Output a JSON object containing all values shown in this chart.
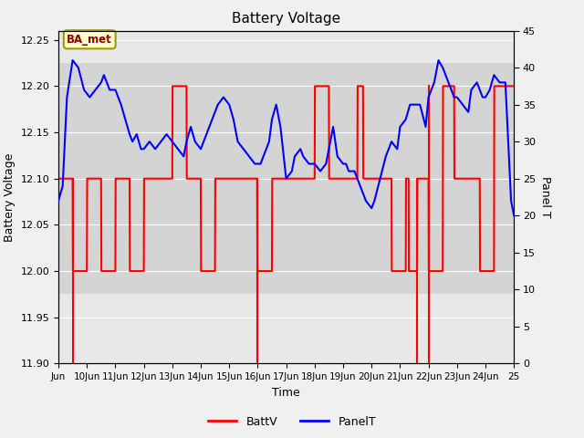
{
  "title": "Battery Voltage",
  "xlabel": "Time",
  "ylabel_left": "Battery Voltage",
  "ylabel_right": "Panel T",
  "annotation_text": "BA_met",
  "xlim": [
    9,
    25
  ],
  "ylim_left": [
    11.9,
    12.26
  ],
  "ylim_right": [
    0,
    45
  ],
  "yticks_left": [
    11.9,
    11.95,
    12.0,
    12.05,
    12.1,
    12.15,
    12.2,
    12.25
  ],
  "yticks_right": [
    0,
    5,
    10,
    15,
    20,
    25,
    30,
    35,
    40,
    45
  ],
  "xtick_positions": [
    9,
    10,
    11,
    12,
    13,
    14,
    15,
    16,
    17,
    18,
    19,
    20,
    21,
    22,
    23,
    24,
    25
  ],
  "xtick_labels": [
    "Jun",
    "10Jun",
    "11Jun",
    "12Jun",
    "13Jun",
    "14Jun",
    "15Jun",
    "16Jun",
    "17Jun",
    "18Jun",
    "19Jun",
    "20Jun",
    "21Jun",
    "22Jun",
    "23Jun",
    "24Jun",
    "25"
  ],
  "background_color": "#f0f0f0",
  "plot_bg_color": "#e8e8e8",
  "shaded_region_ymin": 11.975,
  "shaded_region_ymax": 12.225,
  "shaded_color": "#d4d4d4",
  "battv_color": "#ff0000",
  "panelt_color": "#0000ff",
  "battv_x": [
    9.0,
    9.5,
    9.51,
    10.0,
    10.01,
    10.5,
    10.51,
    11.0,
    11.01,
    11.5,
    11.51,
    12.0,
    12.01,
    12.5,
    12.51,
    13.0,
    13.01,
    13.5,
    13.51,
    14.0,
    14.01,
    14.5,
    14.51,
    15.0,
    15.01,
    15.5,
    15.51,
    15.98,
    15.99,
    16.5,
    16.51,
    17.0,
    17.01,
    17.5,
    17.51,
    18.0,
    18.01,
    18.5,
    18.51,
    19.0,
    19.01,
    19.5,
    19.51,
    19.7,
    19.71,
    20.2,
    20.21,
    20.7,
    20.71,
    21.2,
    21.21,
    21.3,
    21.31,
    21.6,
    21.61,
    22.0,
    22.01,
    22.5,
    22.51,
    22.9,
    22.91,
    23.4,
    23.41,
    23.8,
    23.81,
    24.3,
    24.31,
    24.8,
    25.0
  ],
  "battv_y": [
    12.1,
    12.1,
    12.0,
    12.0,
    12.1,
    12.1,
    12.0,
    12.0,
    12.1,
    12.1,
    12.0,
    12.0,
    12.1,
    12.1,
    12.1,
    12.1,
    12.2,
    12.2,
    12.1,
    12.1,
    12.0,
    12.0,
    12.1,
    12.1,
    12.1,
    12.1,
    12.1,
    12.1,
    12.0,
    12.0,
    12.1,
    12.1,
    12.1,
    12.1,
    12.1,
    12.1,
    12.2,
    12.2,
    12.1,
    12.1,
    12.1,
    12.1,
    12.2,
    12.2,
    12.1,
    12.1,
    12.1,
    12.1,
    12.0,
    12.0,
    12.1,
    12.1,
    12.0,
    12.0,
    12.1,
    12.1,
    12.0,
    12.0,
    12.2,
    12.2,
    12.1,
    12.1,
    12.1,
    12.1,
    12.0,
    12.0,
    12.2,
    12.2,
    12.2
  ],
  "battv_spikes_x": [
    9.51,
    15.98,
    16.0,
    21.61,
    22.0
  ],
  "battv_spikes_y_top": [
    12.1,
    12.1,
    12.1,
    12.1,
    12.1
  ],
  "battv_spikes_y_bot": [
    11.8,
    11.78,
    11.78,
    11.8,
    11.8
  ],
  "panelt_x": [
    9.0,
    9.15,
    9.3,
    9.5,
    9.7,
    9.9,
    10.1,
    10.3,
    10.5,
    10.6,
    10.8,
    11.0,
    11.1,
    11.2,
    11.35,
    11.5,
    11.6,
    11.75,
    11.9,
    12.0,
    12.2,
    12.4,
    12.6,
    12.8,
    13.0,
    13.2,
    13.4,
    13.5,
    13.65,
    13.8,
    14.0,
    14.2,
    14.4,
    14.6,
    14.8,
    15.0,
    15.15,
    15.3,
    15.5,
    15.7,
    15.9,
    16.0,
    16.1,
    16.2,
    16.4,
    16.5,
    16.65,
    16.8,
    17.0,
    17.2,
    17.3,
    17.5,
    17.6,
    17.8,
    18.0,
    18.2,
    18.4,
    18.5,
    18.65,
    18.8,
    19.0,
    19.1,
    19.2,
    19.4,
    19.6,
    19.8,
    20.0,
    20.1,
    20.3,
    20.5,
    20.7,
    20.9,
    21.0,
    21.2,
    21.35,
    21.5,
    21.7,
    21.9,
    22.0,
    22.2,
    22.35,
    22.5,
    22.7,
    22.9,
    23.0,
    23.2,
    23.4,
    23.5,
    23.7,
    23.9,
    24.0,
    24.15,
    24.3,
    24.5,
    24.7,
    24.9,
    25.0
  ],
  "panelt_y": [
    22,
    24,
    36,
    41,
    40,
    37,
    36,
    37,
    38,
    39,
    37,
    37,
    36,
    35,
    33,
    31,
    30,
    31,
    29,
    29,
    30,
    29,
    30,
    31,
    30,
    29,
    28,
    30,
    32,
    30,
    29,
    31,
    33,
    35,
    36,
    35,
    33,
    30,
    29,
    28,
    27,
    27,
    27,
    28,
    30,
    33,
    35,
    32,
    25,
    26,
    28,
    29,
    28,
    27,
    27,
    26,
    27,
    29,
    32,
    28,
    27,
    27,
    26,
    26,
    24,
    22,
    21,
    22,
    25,
    28,
    30,
    29,
    32,
    33,
    35,
    35,
    35,
    32,
    36,
    38,
    41,
    40,
    38,
    36,
    36,
    35,
    34,
    37,
    38,
    36,
    36,
    37,
    39,
    38,
    38,
    22,
    20
  ]
}
